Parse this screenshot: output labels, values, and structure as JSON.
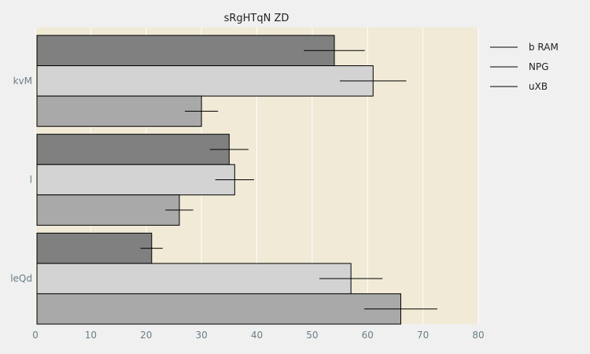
{
  "chart_data": {
    "type": "bar",
    "orientation": "horizontal",
    "title": "sRgHTqN ZD",
    "xlabel": "",
    "ylabel": "",
    "categories": [
      "kvM",
      "l",
      "leQd"
    ],
    "xlim": [
      0,
      80
    ],
    "xticks": [
      0,
      10,
      20,
      30,
      40,
      50,
      60,
      70,
      80
    ],
    "grid": true,
    "legend_position": "top-right",
    "series": [
      {
        "name": "b RAM",
        "color": "#808080",
        "values": [
          54,
          35,
          21
        ],
        "errors": [
          5.5,
          3.5,
          2
        ]
      },
      {
        "name": "NPG",
        "color": "#d3d3d3",
        "values": [
          61,
          36,
          57
        ],
        "errors": [
          6,
          3.5,
          5.7
        ]
      },
      {
        "name": "uXB",
        "color": "#a9a9a9",
        "values": [
          30,
          26,
          66
        ],
        "errors": [
          3,
          2.5,
          6.6
        ]
      }
    ]
  }
}
